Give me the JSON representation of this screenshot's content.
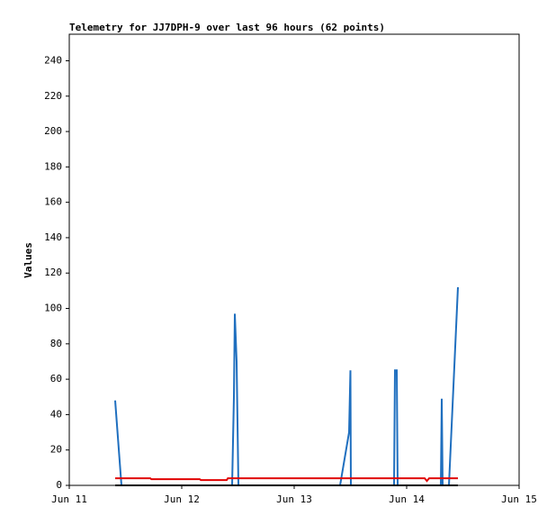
{
  "chart_data": {
    "type": "line",
    "title": "Telemetry for JJ7DPH-9 over last 96 hours (62 points)",
    "y_label": "Values",
    "xlim": [
      11,
      15
    ],
    "xticks": [
      {
        "value": 11,
        "label": "Jun 11"
      },
      {
        "value": 12,
        "label": "Jun 12"
      },
      {
        "value": 13,
        "label": "Jun 13"
      },
      {
        "value": 14,
        "label": "Jun 14"
      },
      {
        "value": 15,
        "label": "Jun 15"
      }
    ],
    "ylim": [
      0,
      255
    ],
    "yticks": [
      0,
      20,
      40,
      60,
      80,
      100,
      120,
      140,
      160,
      180,
      200,
      220,
      240
    ],
    "series": [
      {
        "color": "#1f6fbf",
        "x": [
          11.408,
          11.464,
          12.448,
          12.464,
          12.472,
          12.488,
          12.504,
          13.408,
          13.488,
          13.5,
          13.504,
          13.888,
          13.896,
          13.912,
          13.92,
          14.304,
          14.312,
          14.32,
          14.376,
          14.456
        ],
        "values": [
          48,
          0,
          0,
          50,
          97,
          70,
          0,
          0,
          30,
          65,
          0,
          0,
          65,
          65,
          0,
          0,
          49,
          0,
          0,
          112
        ]
      },
      {
        "color": "#e00000",
        "x": [
          11.408,
          11.72,
          11.73,
          12.16,
          12.17,
          12.4,
          12.41,
          14.16,
          14.18,
          14.2,
          14.456
        ],
        "values": [
          4,
          4,
          3.5,
          3.5,
          3,
          3,
          4,
          4,
          2.5,
          4,
          4
        ]
      },
      {
        "color": "#000000",
        "x": [
          11.408,
          14.456
        ],
        "values": [
          0,
          0
        ]
      }
    ]
  }
}
